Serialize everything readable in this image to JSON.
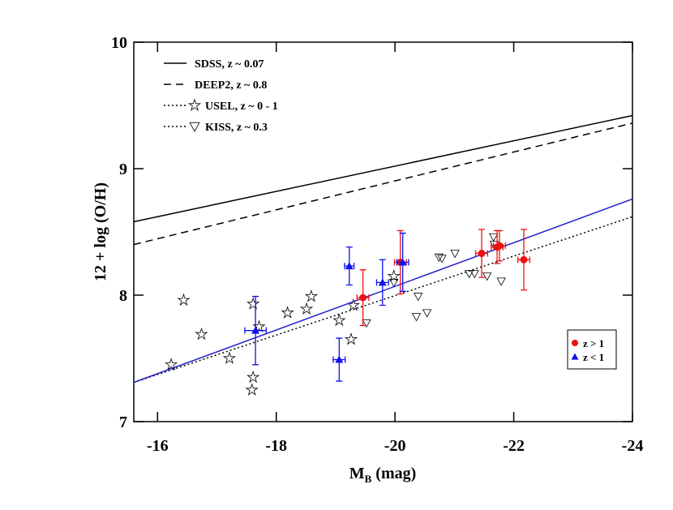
{
  "chart_data": {
    "type": "scatter",
    "x_label": "M",
    "x_label_sub": "B",
    "x_label_rest": " (mag)",
    "y_label": "12 + log (O/H)",
    "xlim": [
      -15.6,
      -24
    ],
    "xticks": [
      -16,
      -18,
      -20,
      -22,
      -24
    ],
    "ylim": [
      7,
      10
    ],
    "yticks": [
      7,
      8,
      9,
      10
    ],
    "series": [
      {
        "name": "SDSS, z ~ 0.07",
        "kind": "line",
        "style": "solid",
        "color": "#000000",
        "legend_group": 1,
        "x": [
          -15.6,
          -24
        ],
        "values": [
          8.58,
          9.42
        ]
      },
      {
        "name": "DEEP2, z ~ 0.8",
        "kind": "line",
        "style": "dashed",
        "color": "#000000",
        "legend_group": 1,
        "x": [
          -15.6,
          -24
        ],
        "values": [
          8.4,
          9.36
        ]
      },
      {
        "name": "USEL, z ~ 0 - 1",
        "kind": "points",
        "marker": "star",
        "legend_line": "dotted",
        "color": "#000000",
        "legend_group": 1,
        "x": [
          -16.44,
          -16.74,
          -16.23,
          -17.21,
          -17.61,
          -17.61,
          -17.59,
          -17.71,
          -18.19,
          -18.51,
          -18.59,
          -19.06,
          -19.3,
          -19.26,
          -19.98
        ],
        "values": [
          7.96,
          7.69,
          7.45,
          7.5,
          7.93,
          7.35,
          7.25,
          7.75,
          7.86,
          7.89,
          7.99,
          7.8,
          7.92,
          7.65,
          8.15
        ]
      },
      {
        "name": "KISS, z ~ 0.3",
        "kind": "points",
        "marker": "triangle-down",
        "legend_line": "dotted",
        "color": "#000000",
        "legend_group": 1,
        "x": [
          -19.52,
          -19.98,
          -20.36,
          -20.54,
          -20.39,
          -20.74,
          -20.79,
          -21.01,
          -21.25,
          -21.34,
          -21.55,
          -21.66,
          -21.79,
          -21.67
        ],
        "values": [
          7.78,
          8.1,
          7.83,
          7.86,
          7.99,
          8.3,
          8.29,
          8.33,
          8.17,
          8.17,
          8.15,
          8.46,
          8.11,
          8.4
        ]
      },
      {
        "kind": "line",
        "style": "dotted",
        "color": "#000000",
        "x": [
          -15.6,
          -24
        ],
        "values": [
          7.31,
          8.62
        ]
      },
      {
        "kind": "line",
        "style": "solid",
        "color": "#2222cc",
        "x": [
          -15.6,
          -24
        ],
        "values": [
          7.31,
          8.76
        ]
      },
      {
        "name": "z > 1",
        "kind": "points",
        "marker": "circle",
        "color": "#ee1111",
        "legend_group": 2,
        "x": [
          -19.46,
          -20.09,
          -21.46,
          -21.76,
          -21.72,
          -22.17
        ],
        "values": [
          7.98,
          8.26,
          8.33,
          8.39,
          8.38,
          8.28
        ],
        "xerr": [
          0.1,
          0.1,
          0.1,
          0.1,
          0.1,
          0.1
        ],
        "yerr": [
          0.22,
          0.25,
          0.19,
          0.12,
          0.13,
          0.24
        ]
      },
      {
        "name": "z < 1",
        "kind": "points",
        "marker": "triangle-up",
        "color": "#1111ee",
        "legend_group": 2,
        "x": [
          -19.23,
          -20.13,
          -19.79,
          -19.06,
          -17.65
        ],
        "values": [
          8.23,
          8.26,
          8.1,
          7.49,
          7.72
        ],
        "xerr": [
          0.08,
          0.1,
          0.1,
          0.1,
          0.18
        ],
        "yerr": [
          0.15,
          0.23,
          0.18,
          0.17,
          0.27
        ]
      }
    ]
  }
}
